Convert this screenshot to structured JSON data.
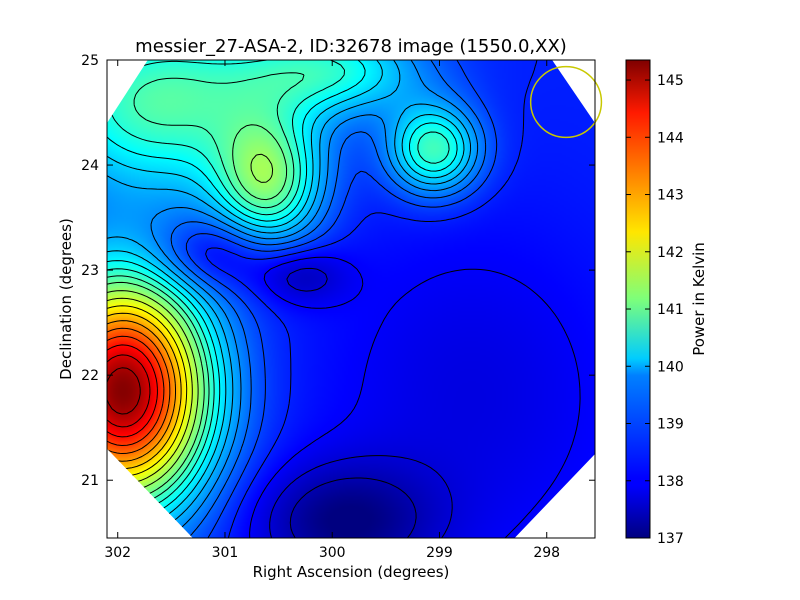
{
  "chart_data": {
    "type": "heatmap",
    "title": "messier_27-ASA-2, ID:32678 image (1550.0,XX)",
    "xlabel": "Right Ascension (degrees)",
    "ylabel": "Declination (degrees)",
    "xlim": [
      302.1,
      297.55
    ],
    "ylim": [
      20.45,
      25.0
    ],
    "x_ticks": [
      302,
      301,
      300,
      299,
      298
    ],
    "y_ticks": [
      21,
      22,
      23,
      24,
      25
    ],
    "colorbar": {
      "label": "Power in Kelvin",
      "range": [
        137.0,
        145.35
      ],
      "ticks": [
        137,
        138,
        139,
        140,
        141,
        142,
        143,
        144,
        145
      ],
      "colormap": "jet"
    },
    "beam_circle": {
      "ra": 297.82,
      "dec": 24.6,
      "radius_deg": 0.33,
      "color": "#c8c800"
    },
    "valid_region_polygon_radec": [
      [
        301.72,
        25.0
      ],
      [
        297.95,
        25.0
      ],
      [
        297.55,
        24.4
      ],
      [
        297.55,
        21.25
      ],
      [
        298.3,
        20.45
      ],
      [
        301.3,
        20.45
      ],
      [
        302.1,
        21.3
      ],
      [
        302.1,
        24.4
      ]
    ],
    "field_features": [
      {
        "kind": "hot_peak",
        "ra": 301.95,
        "dec": 21.85,
        "value": 145.3,
        "sigma_ra": 0.55,
        "sigma_dec": 0.75
      },
      {
        "kind": "warm_blob",
        "ra": 300.6,
        "dec": 23.85,
        "value": 140.9,
        "sigma_ra": 0.35,
        "sigma_dec": 0.45
      },
      {
        "kind": "warm_blob",
        "ra": 299.05,
        "dec": 24.15,
        "value": 140.7,
        "sigma_ra": 0.3,
        "sigma_dec": 0.3
      },
      {
        "kind": "warm_region",
        "ra": 301.6,
        "dec": 24.6,
        "value": 140.8,
        "sigma_ra": 0.8,
        "sigma_dec": 0.6
      },
      {
        "kind": "warm_region",
        "ra": 300.0,
        "dec": 24.9,
        "value": 140.2,
        "sigma_ra": 0.6,
        "sigma_dec": 0.3
      },
      {
        "kind": "cold_trough",
        "ra": 301.1,
        "dec": 23.15,
        "value": 137.4,
        "sigma_ra": 0.4,
        "sigma_dec": 0.25
      },
      {
        "kind": "cold_trough",
        "ra": 300.3,
        "dec": 22.95,
        "value": 137.5,
        "sigma_ra": 0.3,
        "sigma_dec": 0.2
      },
      {
        "kind": "cold_trough",
        "ra": 299.9,
        "dec": 20.6,
        "value": 137.1,
        "sigma_ra": 0.6,
        "sigma_dec": 0.4
      },
      {
        "kind": "cold_region",
        "ra": 298.7,
        "dec": 21.8,
        "value": 137.8,
        "sigma_ra": 1.0,
        "sigma_dec": 1.2
      }
    ],
    "contour_levels": [
      137.4,
      137.7,
      138.0,
      138.3,
      138.6,
      138.9,
      139.2,
      139.5,
      139.8,
      140.1,
      140.4,
      140.7,
      141.0,
      141.4,
      141.8,
      142.2,
      142.6,
      143.0,
      143.4,
      143.8,
      144.2,
      144.6,
      145.0
    ]
  }
}
